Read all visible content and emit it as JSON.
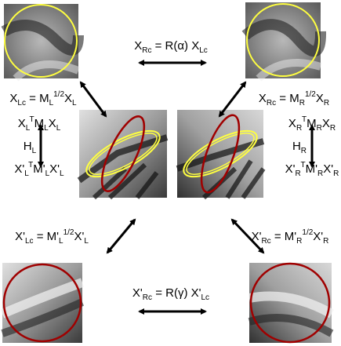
{
  "equations": [
    [
      "X",
      "Rc",
      " = R(α) X",
      "Lc"
    ],
    [
      "X",
      "Lc",
      " = M",
      "L",
      "1/2",
      "X",
      "L"
    ],
    [
      "X",
      "Rc",
      " = M",
      "R",
      "1/2",
      "X",
      "R"
    ],
    [
      "X",
      "L",
      "T",
      "M",
      "L",
      "X",
      "L"
    ],
    [
      "H",
      "L"
    ],
    [
      "X'",
      "L",
      "T",
      "M'",
      "L",
      "X'",
      "L"
    ],
    [
      "X",
      "R",
      "T",
      "M",
      "R",
      "X",
      "R"
    ],
    [
      "H",
      "R"
    ],
    [
      "X'",
      "R",
      "T",
      "M'",
      "R",
      "X'",
      "R"
    ],
    [
      "X'",
      "Lc",
      " = M'",
      "L",
      "1/2",
      "X'",
      "L"
    ],
    [
      "X'",
      "Rc",
      " = M'",
      "R",
      "1/2",
      "X'",
      "R"
    ],
    [
      "X'",
      "Rc",
      " = R(γ) X'",
      "Lc"
    ]
  ]
}
